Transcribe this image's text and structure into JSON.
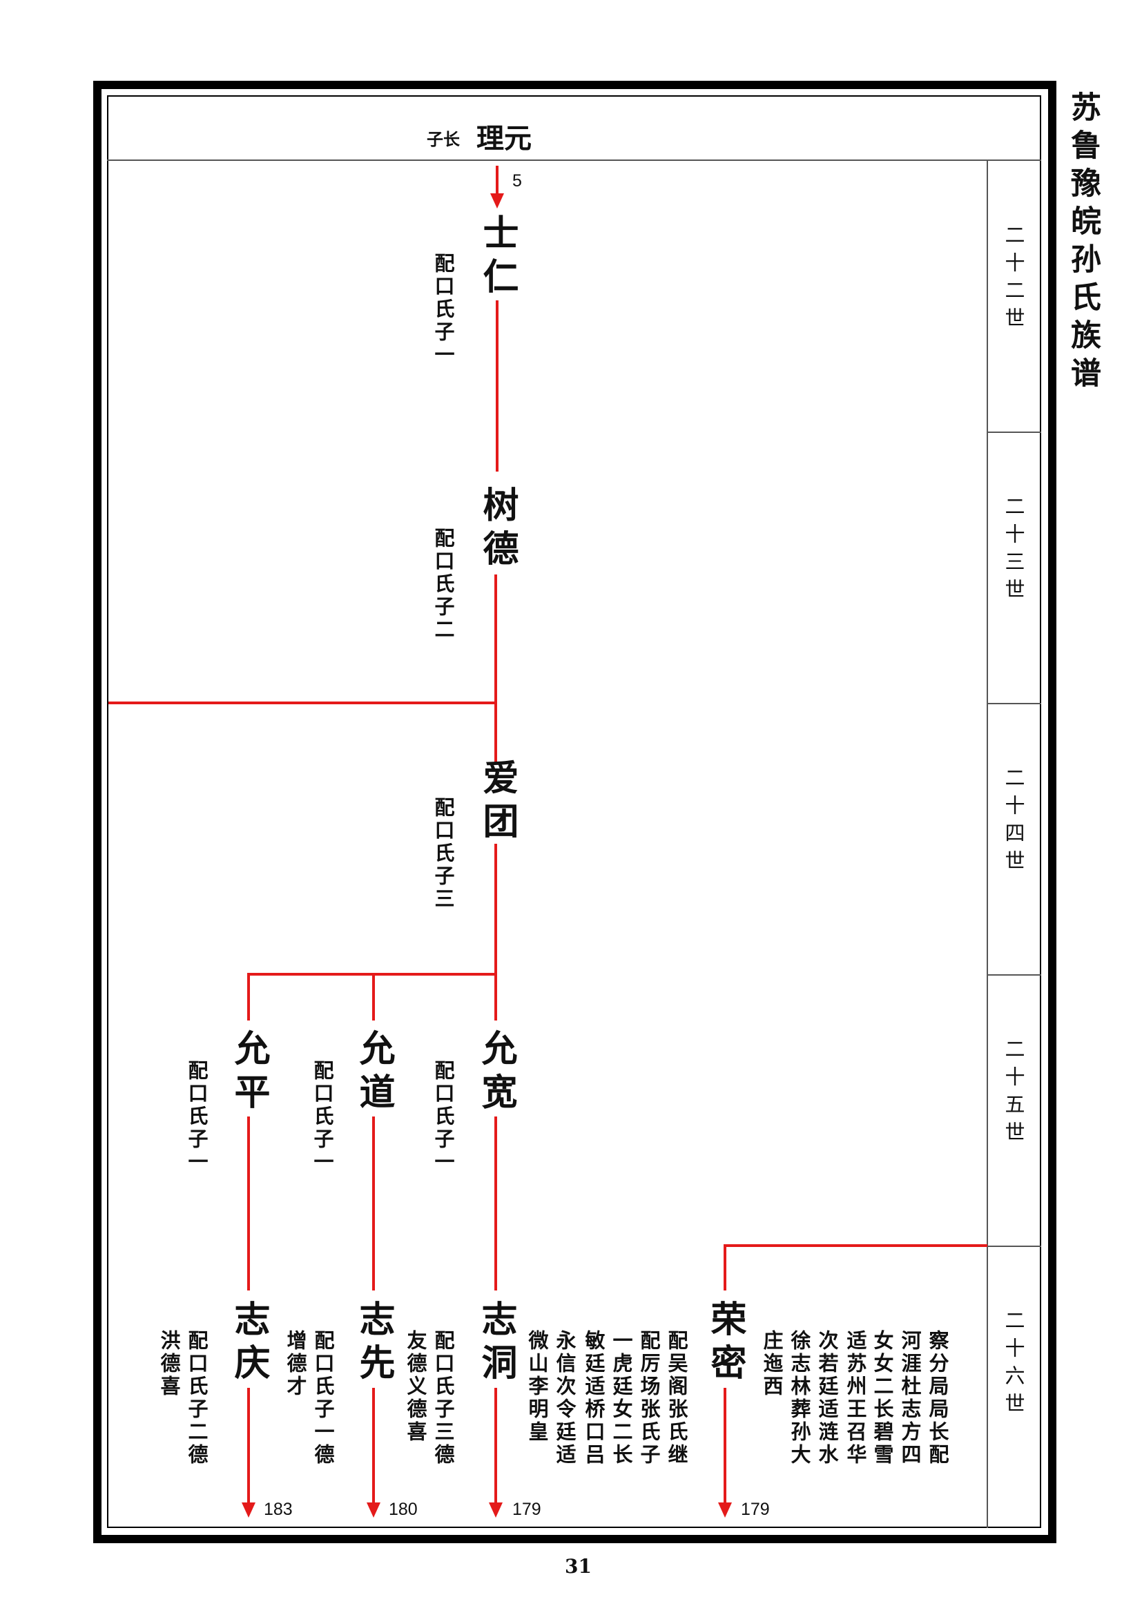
{
  "book_title": "苏鲁豫皖孙氏族谱",
  "header": {
    "relation": "子长",
    "ancestor": "理元"
  },
  "top_ref": "5",
  "generations": [
    "二十二世",
    "二十三世",
    "二十四世",
    "二十五世",
    "二十六世"
  ],
  "nodes": {
    "shiren": {
      "name": "士仁",
      "notes": [
        "配口氏子一"
      ]
    },
    "shude": {
      "name": "树德",
      "notes": [
        "配口氏子二"
      ]
    },
    "aituan": {
      "name": "爱团",
      "notes": [
        "配口氏子三"
      ]
    },
    "yunping": {
      "name": "允平",
      "notes": [
        "配口氏子一"
      ]
    },
    "yundao": {
      "name": "允道",
      "notes": [
        "配口氏子一"
      ]
    },
    "yunkuan": {
      "name": "允宽",
      "notes": [
        "配口氏子一"
      ]
    },
    "zhiqing": {
      "name": "志庆",
      "notes": [
        "配口氏子二德",
        "洪德喜"
      ],
      "ref": "183"
    },
    "zhixian": {
      "name": "志先",
      "notes": [
        "配口氏子一德",
        "增德才"
      ],
      "ref": "180"
    },
    "zhidong": {
      "name": "志洞",
      "notes": [
        "配口氏子三德",
        "友德义德喜"
      ],
      "ref": "179"
    },
    "zhidong_extra": {
      "notes": [
        "配吴阁张氏继",
        "配厉场张氏子",
        "一虎廷女二长",
        "敏廷适桥口吕",
        "永信次令廷适",
        "微山李明皇"
      ]
    },
    "rongmi": {
      "name": "荣密",
      "notes": [
        "察分局局长配",
        "河涯杜志方四",
        "女女二长碧雪",
        "适苏州王召华",
        "次若廷适涟水",
        "徐志林葬孙大",
        "庄迤西"
      ],
      "ref": "179"
    }
  },
  "page_number": "31",
  "colors": {
    "line": "#e41a1a",
    "border": "#000000"
  }
}
